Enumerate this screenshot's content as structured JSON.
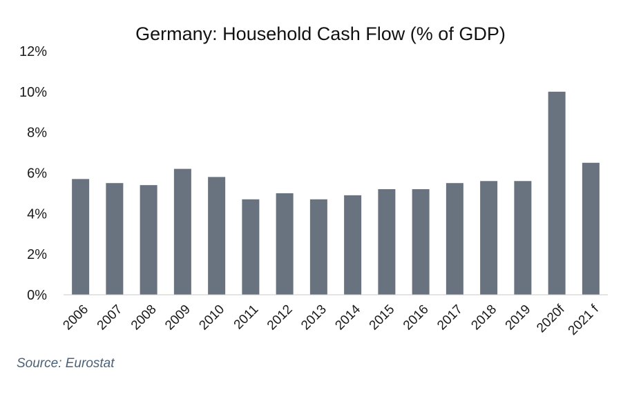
{
  "chart_data": {
    "type": "bar",
    "title": "Germany: Household Cash Flow (% of GDP)",
    "categories": [
      "2006",
      "2007",
      "2008",
      "2009",
      "2010",
      "2011",
      "2012",
      "2013",
      "2014",
      "2015",
      "2016",
      "2017",
      "2018",
      "2019",
      "2020f",
      "2021 f"
    ],
    "values": [
      5.7,
      5.5,
      5.4,
      6.2,
      5.8,
      4.7,
      5.0,
      4.7,
      4.9,
      5.2,
      5.2,
      5.5,
      5.6,
      5.6,
      10.0,
      6.5
    ],
    "ylim": [
      0,
      12
    ],
    "yticks": [
      0,
      2,
      4,
      6,
      8,
      10,
      12
    ],
    "ytick_suffix": "%",
    "xlabel": "",
    "ylabel": "",
    "bar_color": "#69737f",
    "grid": false,
    "legend": "none"
  },
  "source": "Source: Eurostat"
}
